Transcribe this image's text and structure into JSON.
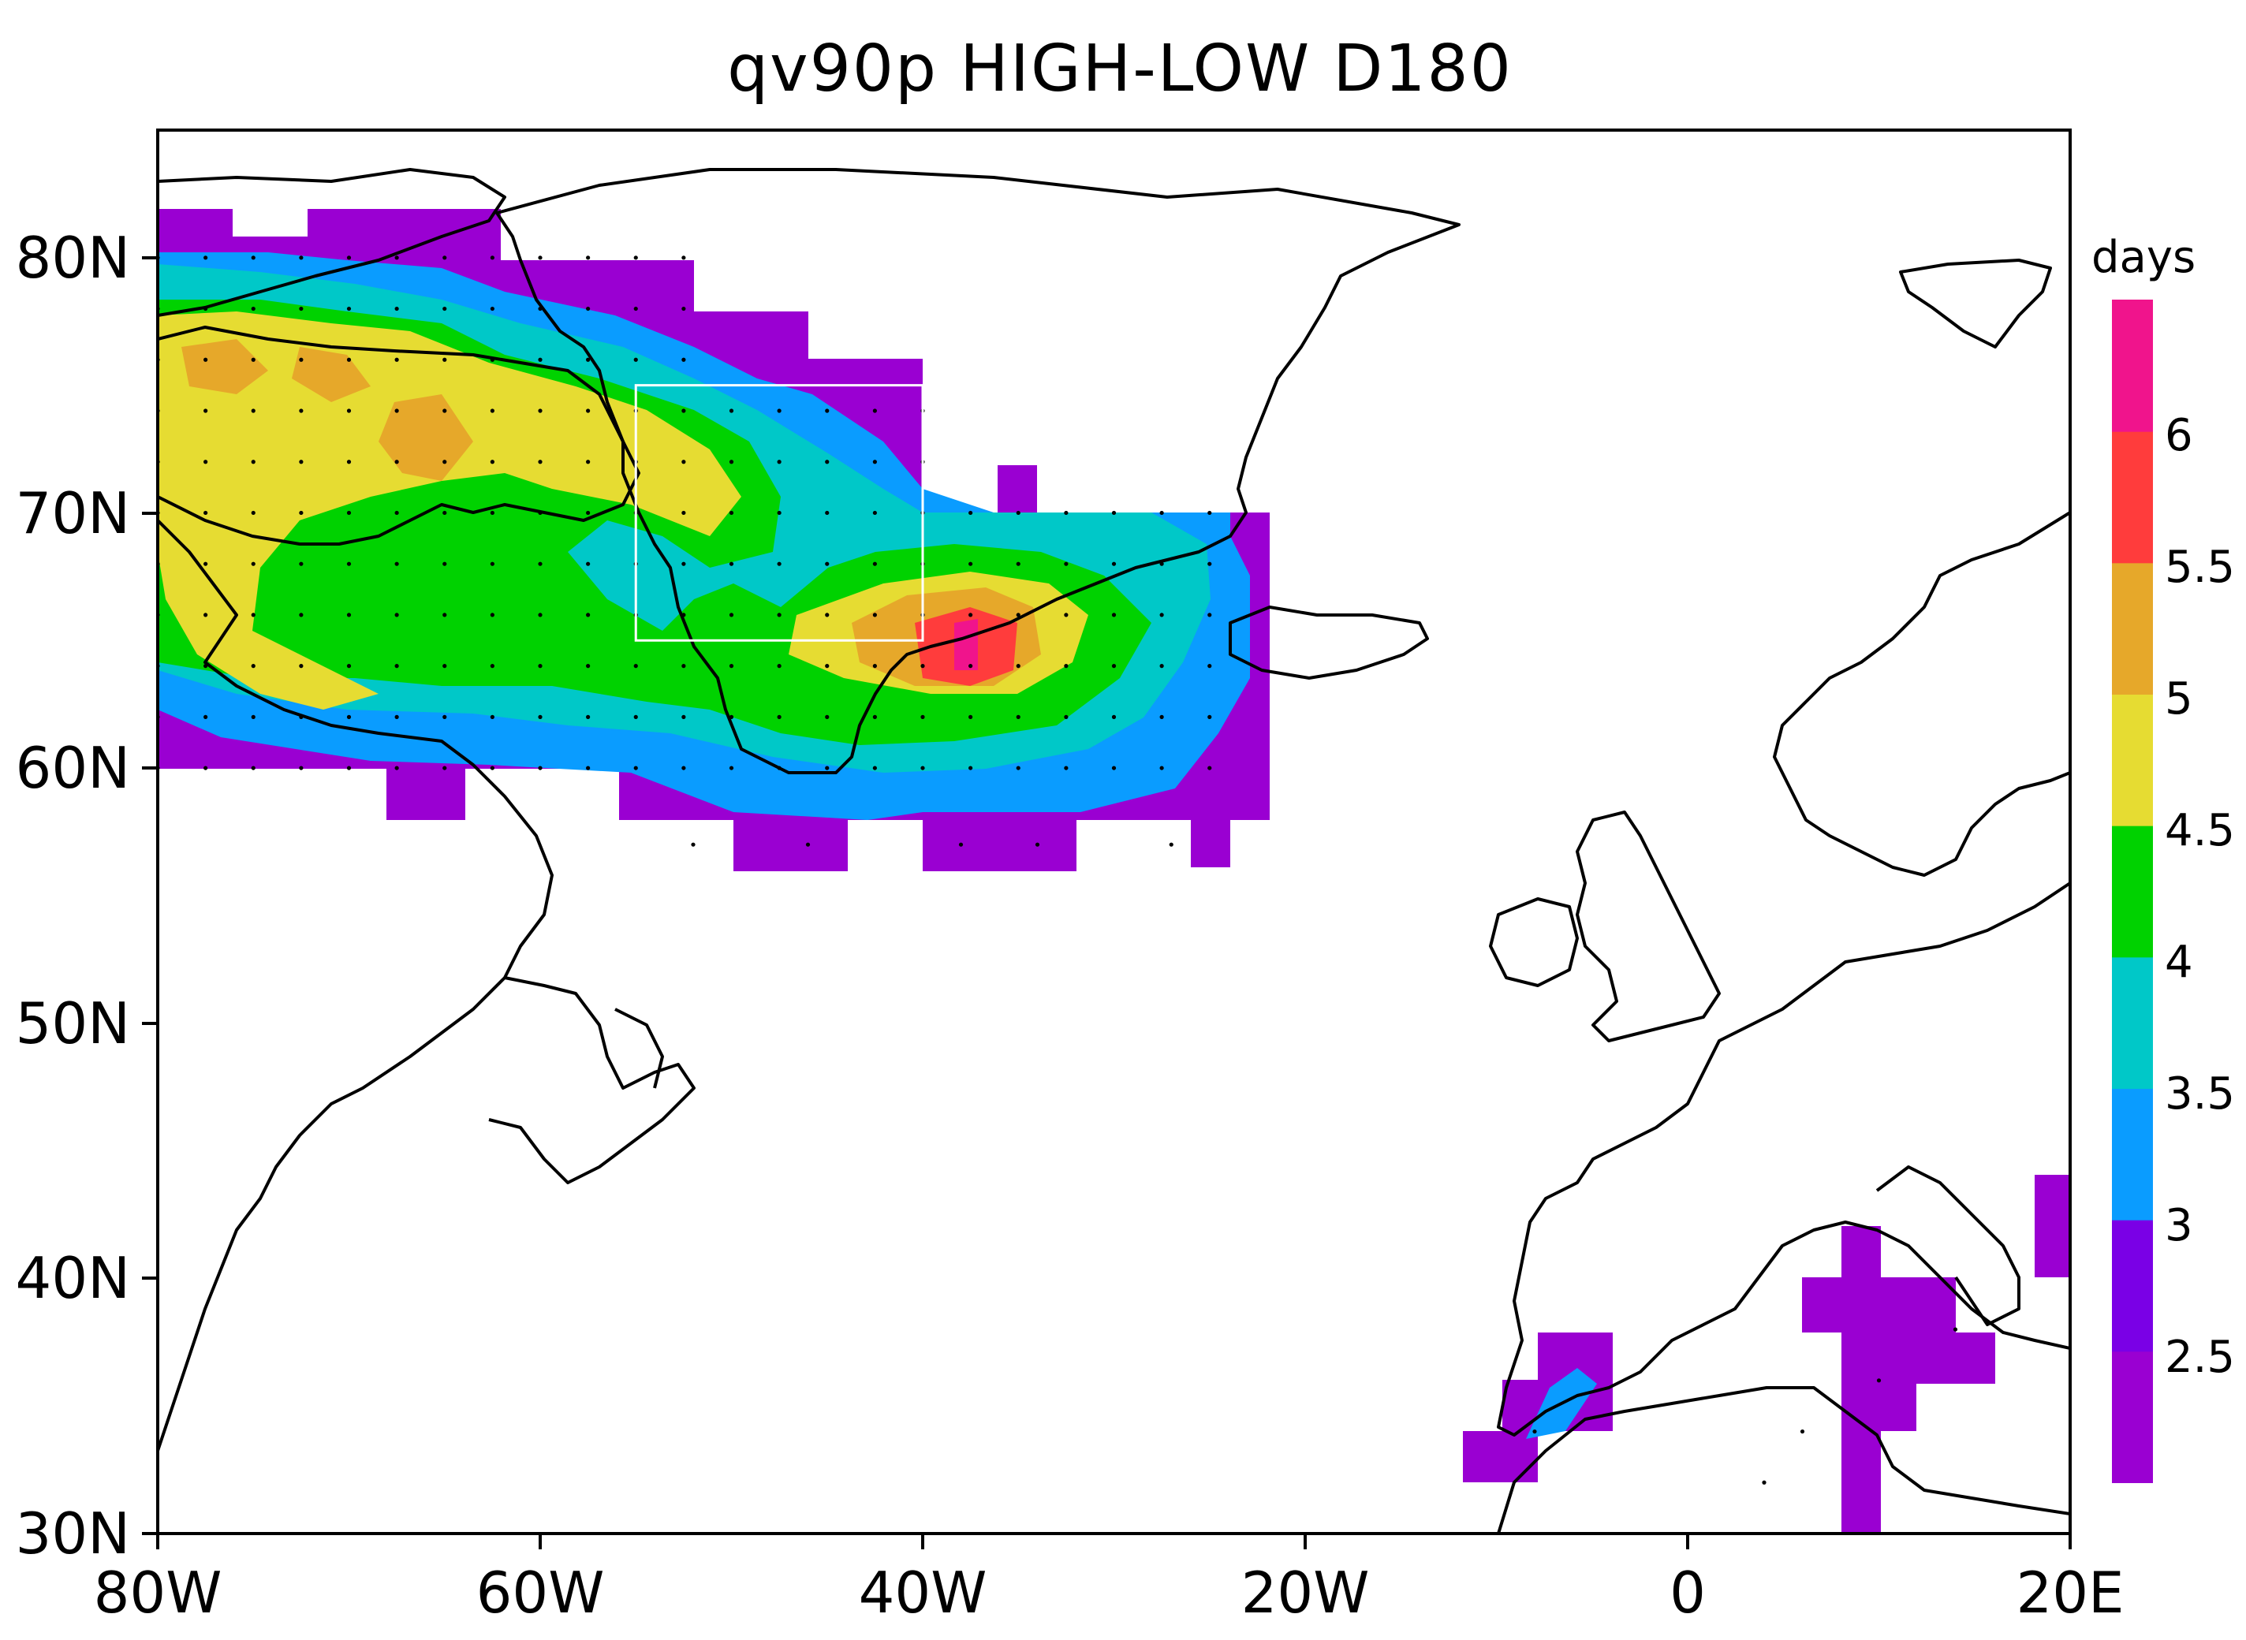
{
  "title": "qv90p HIGH-LOW D180",
  "units_label": "days",
  "x_ticks": [
    "80W",
    "60W",
    "40W",
    "20W",
    "0",
    "20E"
  ],
  "y_ticks": [
    "30N",
    "40N",
    "50N",
    "60N",
    "70N",
    "80N"
  ],
  "extent": {
    "lon": [
      -80,
      20
    ],
    "lat": [
      30,
      85
    ]
  },
  "colorbar": {
    "levels": [
      "2.5",
      "3",
      "3.5",
      "4",
      "4.5",
      "5",
      "5.5",
      "6"
    ],
    "colors": [
      "#9a00d2",
      "#7a00e6",
      "#0a9cff",
      "#00c8c8",
      "#00d200",
      "#e6dc32",
      "#e6a82a",
      "#ff3c3c",
      "#f0148c"
    ]
  },
  "highlight_box": {
    "lon": [
      -55,
      -40
    ],
    "lat": [
      65,
      75
    ],
    "color": "#ffffff"
  }
}
